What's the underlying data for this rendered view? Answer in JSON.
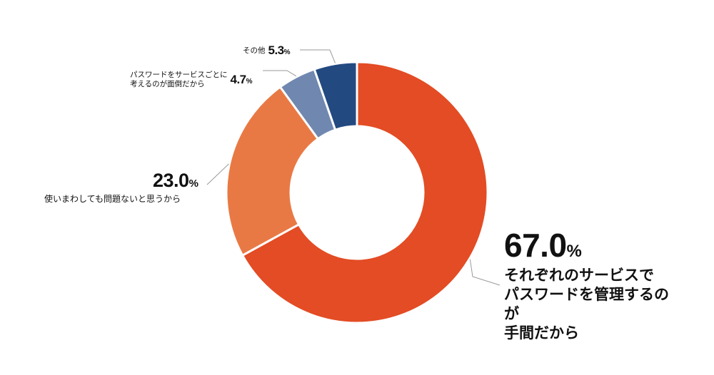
{
  "chart_data": {
    "type": "pie",
    "donut": true,
    "categories": [
      "それぞれのサービスでパスワードを管理するのが手間だから",
      "使いまわしても問題ないと思うから",
      "パスワードをサービスごとに考えるのが面倒だから",
      "その他"
    ],
    "values": [
      67.0,
      23.0,
      4.7,
      5.3
    ],
    "value_labels": [
      "67.0",
      "23.0",
      "4.7",
      "5.3"
    ],
    "unit": "%",
    "colors": [
      "#E34C24",
      "#E97944",
      "#7088B0",
      "#234A80"
    ],
    "label_lines": [
      [
        "それぞれのサービスで",
        "パスワードを管理するのが",
        "手間だから"
      ],
      [
        "使いまわしても問題ないと思うから"
      ],
      [
        "パスワードをサービスごとに",
        "考えるのが面倒だから"
      ],
      [
        "その他"
      ]
    ],
    "legend": "none"
  }
}
